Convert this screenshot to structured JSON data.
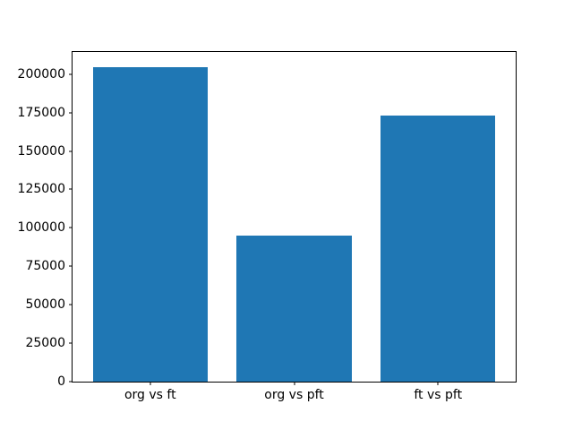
{
  "chart_data": {
    "type": "bar",
    "categories": [
      "org vs ft",
      "org vs pft",
      "ft vs pft"
    ],
    "values": [
      204500,
      95000,
      173000
    ],
    "title": "",
    "xlabel": "",
    "ylabel": "",
    "ylim": [
      0,
      214400
    ],
    "xlim": [
      -0.54,
      2.54
    ],
    "x_positions": [
      0,
      1,
      2
    ],
    "y_ticks": [
      0,
      25000,
      50000,
      75000,
      100000,
      125000,
      150000,
      175000,
      200000
    ],
    "bar_width_fraction": 0.8,
    "bar_color": "#1f77b4",
    "axis_color": "#000000",
    "background": "#ffffff",
    "grid": false,
    "legend": "none"
  }
}
